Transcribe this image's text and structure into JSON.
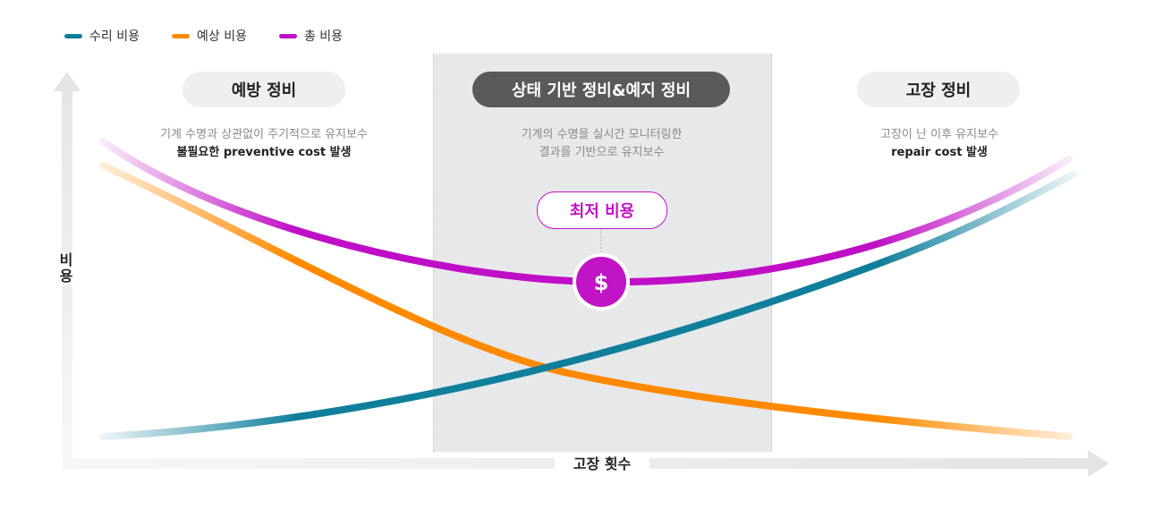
{
  "legend": [
    {
      "label": "수리 비용",
      "color": "#0f7f9c"
    },
    {
      "label": "예상 비용",
      "color": "#ff8a00"
    },
    {
      "label": "총 비용",
      "color": "#bf0fc6"
    }
  ],
  "sections": {
    "preventive": {
      "title": "예방 정비",
      "line1": "기계 수명과 상관없이 주기적으로 유지보수",
      "line2": "불필요한 preventive cost 발생"
    },
    "predictive": {
      "title": "상태 기반 정비&예지 정비",
      "line1": "기계의 수명을 실시간 모니터링한",
      "line2": "결과를 기반으로 유지보수"
    },
    "breakdown": {
      "title": "고장 정비",
      "line1": "고장이 난 이후 유지보수",
      "line2": "repair cost 발생"
    }
  },
  "min_cost_label": "최저 비용",
  "dollar_symbol": "$",
  "axes": {
    "y_label_1": "비",
    "y_label_2": "용",
    "x_label": "고장 횟수"
  }
}
